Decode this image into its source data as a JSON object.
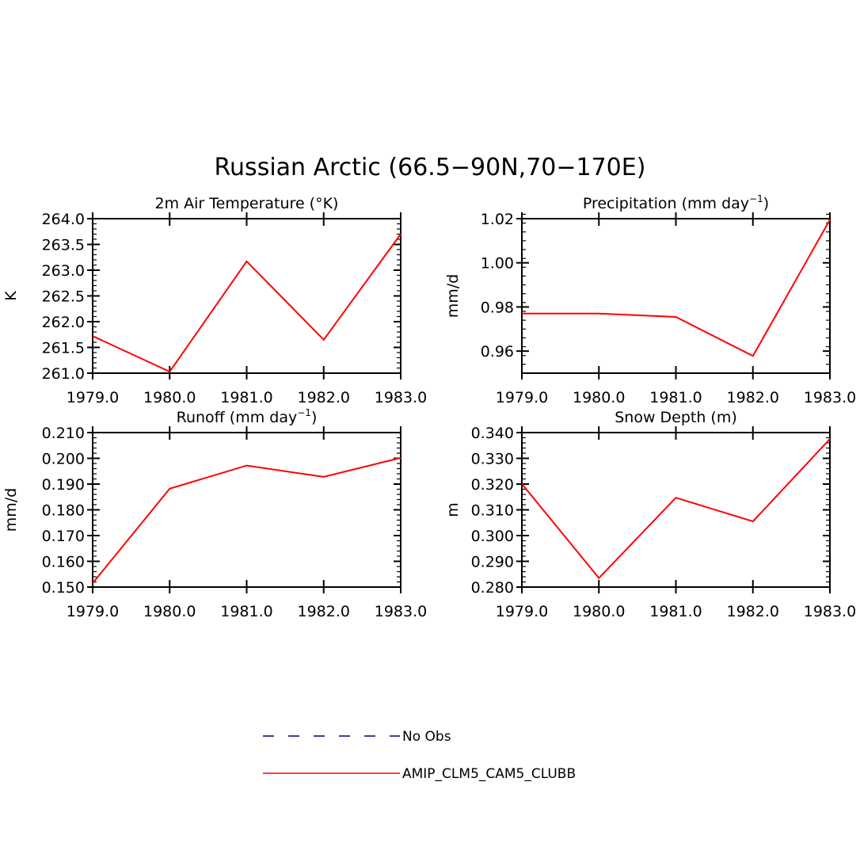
{
  "figure": {
    "title": "Russian Arctic (66.5−90N,70−170E)"
  },
  "colors": {
    "series": "#ff0000",
    "obs": "#000080",
    "axis": "#000000"
  },
  "legend": {
    "placement": "bottom-center",
    "items": [
      {
        "label": "No Obs",
        "style": "dashed",
        "color": "#000080"
      },
      {
        "label": "AMIP_CLM5_CAM5_CLUBB",
        "style": "solid",
        "color": "#ff0000"
      }
    ]
  },
  "chart_data": [
    {
      "type": "line",
      "title": "2m Air Temperature (°K)",
      "title_sup": "",
      "title_tail": "",
      "ylabel": "K",
      "xlabel": "",
      "x": [
        1979.0,
        1980.0,
        1981.0,
        1982.0,
        1983.0
      ],
      "xticks": [
        "1979.0",
        "1980.0",
        "1981.0",
        "1982.0",
        "1983.0"
      ],
      "xlim": [
        1979.0,
        1983.0
      ],
      "ylim": [
        261.0,
        264.0
      ],
      "yticks": [
        261.0,
        261.5,
        262.0,
        262.5,
        263.0,
        263.5,
        264.0
      ],
      "ytick_labels": [
        "261.0",
        "261.5",
        "262.0",
        "262.5",
        "263.0",
        "263.5",
        "264.0"
      ],
      "yminor_step": 0.1,
      "series": [
        {
          "name": "AMIP_CLM5_CAM5_CLUBB",
          "values": [
            261.72,
            261.03,
            263.17,
            261.65,
            263.7
          ]
        }
      ]
    },
    {
      "type": "line",
      "title": "Precipitation (mm day",
      "title_sup": "−1",
      "title_tail": ")",
      "ylabel": "mm/d",
      "xlabel": "",
      "x": [
        1979.0,
        1980.0,
        1981.0,
        1982.0,
        1983.0
      ],
      "xticks": [
        "1979.0",
        "1980.0",
        "1981.0",
        "1982.0",
        "1983.0"
      ],
      "xlim": [
        1979.0,
        1983.0
      ],
      "ylim": [
        0.95,
        1.02
      ],
      "yticks": [
        0.96,
        0.98,
        1.0,
        1.02
      ],
      "ytick_labels": [
        "0.96",
        "0.98",
        "1.00",
        "1.02"
      ],
      "yminor_step": 0.004,
      "series": [
        {
          "name": "AMIP_CLM5_CAM5_CLUBB",
          "values": [
            0.977,
            0.977,
            0.9755,
            0.9578,
            1.0195
          ]
        }
      ]
    },
    {
      "type": "line",
      "title": "Runoff (mm day",
      "title_sup": "−1",
      "title_tail": ")",
      "ylabel": "mm/d",
      "xlabel": "",
      "x": [
        1979.0,
        1980.0,
        1981.0,
        1982.0,
        1983.0
      ],
      "xticks": [
        "1979.0",
        "1980.0",
        "1981.0",
        "1982.0",
        "1983.0"
      ],
      "xlim": [
        1979.0,
        1983.0
      ],
      "ylim": [
        0.15,
        0.21
      ],
      "yticks": [
        0.15,
        0.16,
        0.17,
        0.18,
        0.19,
        0.2,
        0.21
      ],
      "ytick_labels": [
        "0.150",
        "0.160",
        "0.170",
        "0.180",
        "0.190",
        "0.200",
        "0.210"
      ],
      "yminor_step": 0.002,
      "series": [
        {
          "name": "AMIP_CLM5_CAM5_CLUBB",
          "values": [
            0.1515,
            0.1882,
            0.1972,
            0.1928,
            0.2002
          ]
        }
      ]
    },
    {
      "type": "line",
      "title": "Snow Depth (m)",
      "title_sup": "",
      "title_tail": "",
      "ylabel": "m",
      "xlabel": "",
      "x": [
        1979.0,
        1980.0,
        1981.0,
        1982.0,
        1983.0
      ],
      "xticks": [
        "1979.0",
        "1980.0",
        "1981.0",
        "1982.0",
        "1983.0"
      ],
      "xlim": [
        1979.0,
        1983.0
      ],
      "ylim": [
        0.28,
        0.34
      ],
      "yticks": [
        0.28,
        0.29,
        0.3,
        0.31,
        0.32,
        0.33,
        0.34
      ],
      "ytick_labels": [
        "0.280",
        "0.290",
        "0.300",
        "0.310",
        "0.320",
        "0.330",
        "0.340"
      ],
      "yminor_step": 0.002,
      "series": [
        {
          "name": "AMIP_CLM5_CAM5_CLUBB",
          "values": [
            0.3201,
            0.2835,
            0.3147,
            0.3055,
            0.3375
          ]
        }
      ]
    }
  ]
}
